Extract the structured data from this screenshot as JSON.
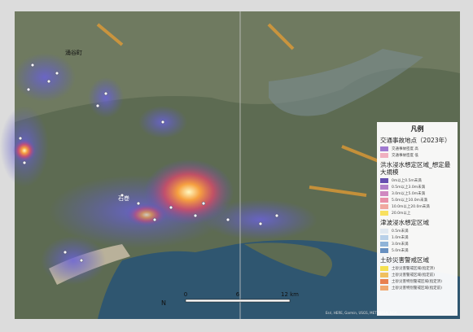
{
  "map": {
    "place_labels": [
      "涌谷町",
      "石巻"
    ],
    "scale_labels": [
      "0",
      "6",
      "12 km"
    ],
    "attribution": "Esri, HERE, Garmin, USGS, METI/NASA, NGA",
    "north": "N"
  },
  "legend": {
    "title": "凡例",
    "sections": [
      {
        "title": "交通事故地点（2023年）",
        "items": [
          "交通事故密度 高",
          "交通事故密度 低"
        ]
      },
      {
        "title": "洪水浸水想定区域_想定最大規模",
        "items": [
          "0m以上0.5m未満",
          "0.5m以上3.0m未満",
          "3.0m以上5.0m未満",
          "5.0m以上10.0m未満",
          "10.0m以上20.0m未満",
          "20.0m以上"
        ]
      },
      {
        "title": "津波浸水想定区域",
        "items": [
          "0.5m未満",
          "1.0m未満",
          "3.0m未満",
          "5.0m未満"
        ]
      },
      {
        "title": "土砂災害警戒区域",
        "items": [
          "土砂災害警戒区域(指定済)",
          "土砂災害警戒区域(指定前)",
          "土砂災害特別警戒区域(指定済)",
          "土砂災害特別警戒区域(指定前)"
        ]
      }
    ]
  }
}
